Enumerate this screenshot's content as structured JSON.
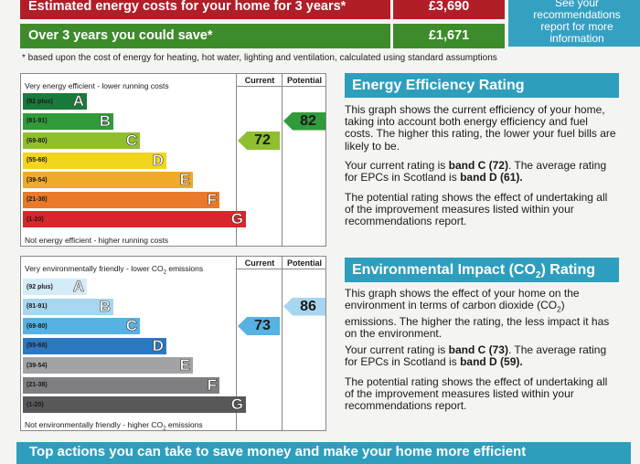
{
  "costs": {
    "estimated_label": "Estimated energy costs for your home for 3 years*",
    "estimated_value": "£3,690",
    "save_label": "Over 3 years you could save*",
    "save_value": "£1,671",
    "see_text": "See your recommendations report for more information"
  },
  "footnote": "* based upon the cost of energy for heating, hot water, lighting and ventilation, calculated using standard assumptions",
  "headers": {
    "current": "Current",
    "potential": "Potential"
  },
  "energy_chart": {
    "top_label": "Very energy efficient - lower running costs",
    "bottom_label": "Not energy efficient - higher running costs",
    "bands": [
      {
        "range": "(92 plus)",
        "letter": "A",
        "color": "#1a7a3c"
      },
      {
        "range": "(81-91)",
        "letter": "B",
        "color": "#2f9b3a"
      },
      {
        "range": "(69-80)",
        "letter": "C",
        "color": "#8fbf2f"
      },
      {
        "range": "(55-68)",
        "letter": "D",
        "color": "#f2d51f"
      },
      {
        "range": "(39-54)",
        "letter": "E",
        "color": "#f0a92b"
      },
      {
        "range": "(21-38)",
        "letter": "F",
        "color": "#ea7a2b"
      },
      {
        "range": "(1-20)",
        "letter": "G",
        "color": "#d9262b"
      }
    ],
    "current": {
      "value": "72",
      "color": "#8fbf2f"
    },
    "potential": {
      "value": "82",
      "color": "#2f9b3a"
    }
  },
  "env_chart": {
    "top_label_pre": "Very environmentally friendly - lower CO",
    "top_label_sub": "2",
    "top_label_post": " emissions",
    "bottom_label_pre": "Not environmentally friendly - higher CO",
    "bottom_label_sub": "2",
    "bottom_label_post": " emissions",
    "bands": [
      {
        "range": "(92 plus)",
        "letter": "A",
        "color": "#d4ecf8"
      },
      {
        "range": "(81-91)",
        "letter": "B",
        "color": "#a7d6f0"
      },
      {
        "range": "(69-80)",
        "letter": "C",
        "color": "#56b2e3"
      },
      {
        "range": "(55-68)",
        "letter": "D",
        "color": "#2d78c2"
      },
      {
        "range": "(39-54)",
        "letter": "E",
        "color": "#a3a3a6"
      },
      {
        "range": "(21-38)",
        "letter": "F",
        "color": "#7f7f82"
      },
      {
        "range": "(1-20)",
        "letter": "G",
        "color": "#58585b"
      }
    ],
    "current": {
      "value": "73",
      "color": "#56b2e3"
    },
    "potential": {
      "value": "86",
      "color": "#a7d6f0"
    }
  },
  "energy_panel": {
    "title": "Energy Efficiency Rating",
    "p1": "This graph shows the current efficiency of your home, taking into account both energy efficiency and fuel costs. The higher this rating, the lower your fuel bills are likely to be.",
    "p2_a": "Your current rating is ",
    "p2_b": "band C (72)",
    "p2_c": ". The average rating for EPCs in Scotland is ",
    "p2_d": "band D (61).",
    "p3": "The potential rating shows the effect of undertaking all of the improvement measures listed within your recommendations report."
  },
  "env_panel": {
    "title_pre": "Environmental Impact (CO",
    "title_sub": "2",
    "title_post": ") Rating",
    "p1_pre": "This graph shows the effect of your home on the environment in terms of carbon dioxide (CO",
    "p1_sub": "2",
    "p1_post": ") emissions. The higher the rating, the less impact it has on the environment.",
    "p2_a": "Your current rating is ",
    "p2_b": "band C (73)",
    "p2_c": ". The average rating for EPCs in Scotland is ",
    "p2_d": "band D (59).",
    "p3": "The potential rating shows the effect of undertaking all of the improvement measures listed within your recommendations report."
  },
  "bottom_banner": "Top actions you can take to save money and make your home more efficient"
}
